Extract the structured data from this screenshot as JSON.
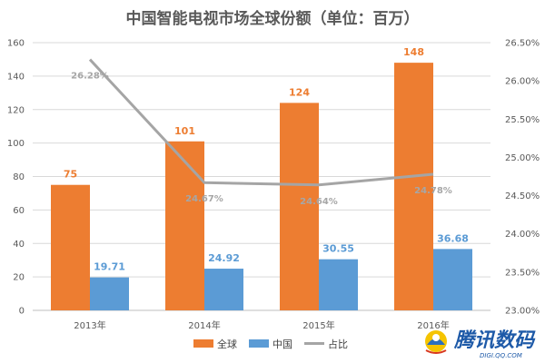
{
  "chart_data": {
    "type": "bar",
    "title": "中国智能电视市场全球份额（单位：百万）",
    "categories": [
      "2013年",
      "2014年",
      "2015年",
      "2016年"
    ],
    "series": [
      {
        "name": "全球",
        "type": "bar",
        "axis": "left",
        "values": [
          75,
          101,
          124,
          148
        ],
        "color": "#ed7d31"
      },
      {
        "name": "中国",
        "type": "bar",
        "axis": "left",
        "values": [
          19.71,
          24.92,
          30.55,
          36.68
        ],
        "color": "#5b9bd5"
      },
      {
        "name": "占比",
        "type": "line",
        "axis": "right",
        "values": [
          26.28,
          24.67,
          24.64,
          24.78
        ],
        "value_labels": [
          "26.28%",
          "24.67%",
          "24.64%",
          "24.78%"
        ],
        "color": "#a5a5a5"
      }
    ],
    "bar_labels": {
      "全球": [
        "75",
        "101",
        "124",
        "148"
      ],
      "中国": [
        "19.71",
        "24.92",
        "30.55",
        "36.68"
      ]
    },
    "ylim_left": [
      0,
      160
    ],
    "yticks_left": [
      "0",
      "20",
      "40",
      "60",
      "80",
      "100",
      "120",
      "140",
      "160"
    ],
    "ylim_right": [
      23.0,
      26.5
    ],
    "yticks_right": [
      "23.00%",
      "23.50%",
      "24.00%",
      "24.50%",
      "25.00%",
      "25.50%",
      "26.00%",
      "26.50%"
    ],
    "grid": true,
    "legend": "bottom"
  },
  "watermark": {
    "main": "腾讯数码",
    "sub": "DIGI.QQ.COM"
  }
}
